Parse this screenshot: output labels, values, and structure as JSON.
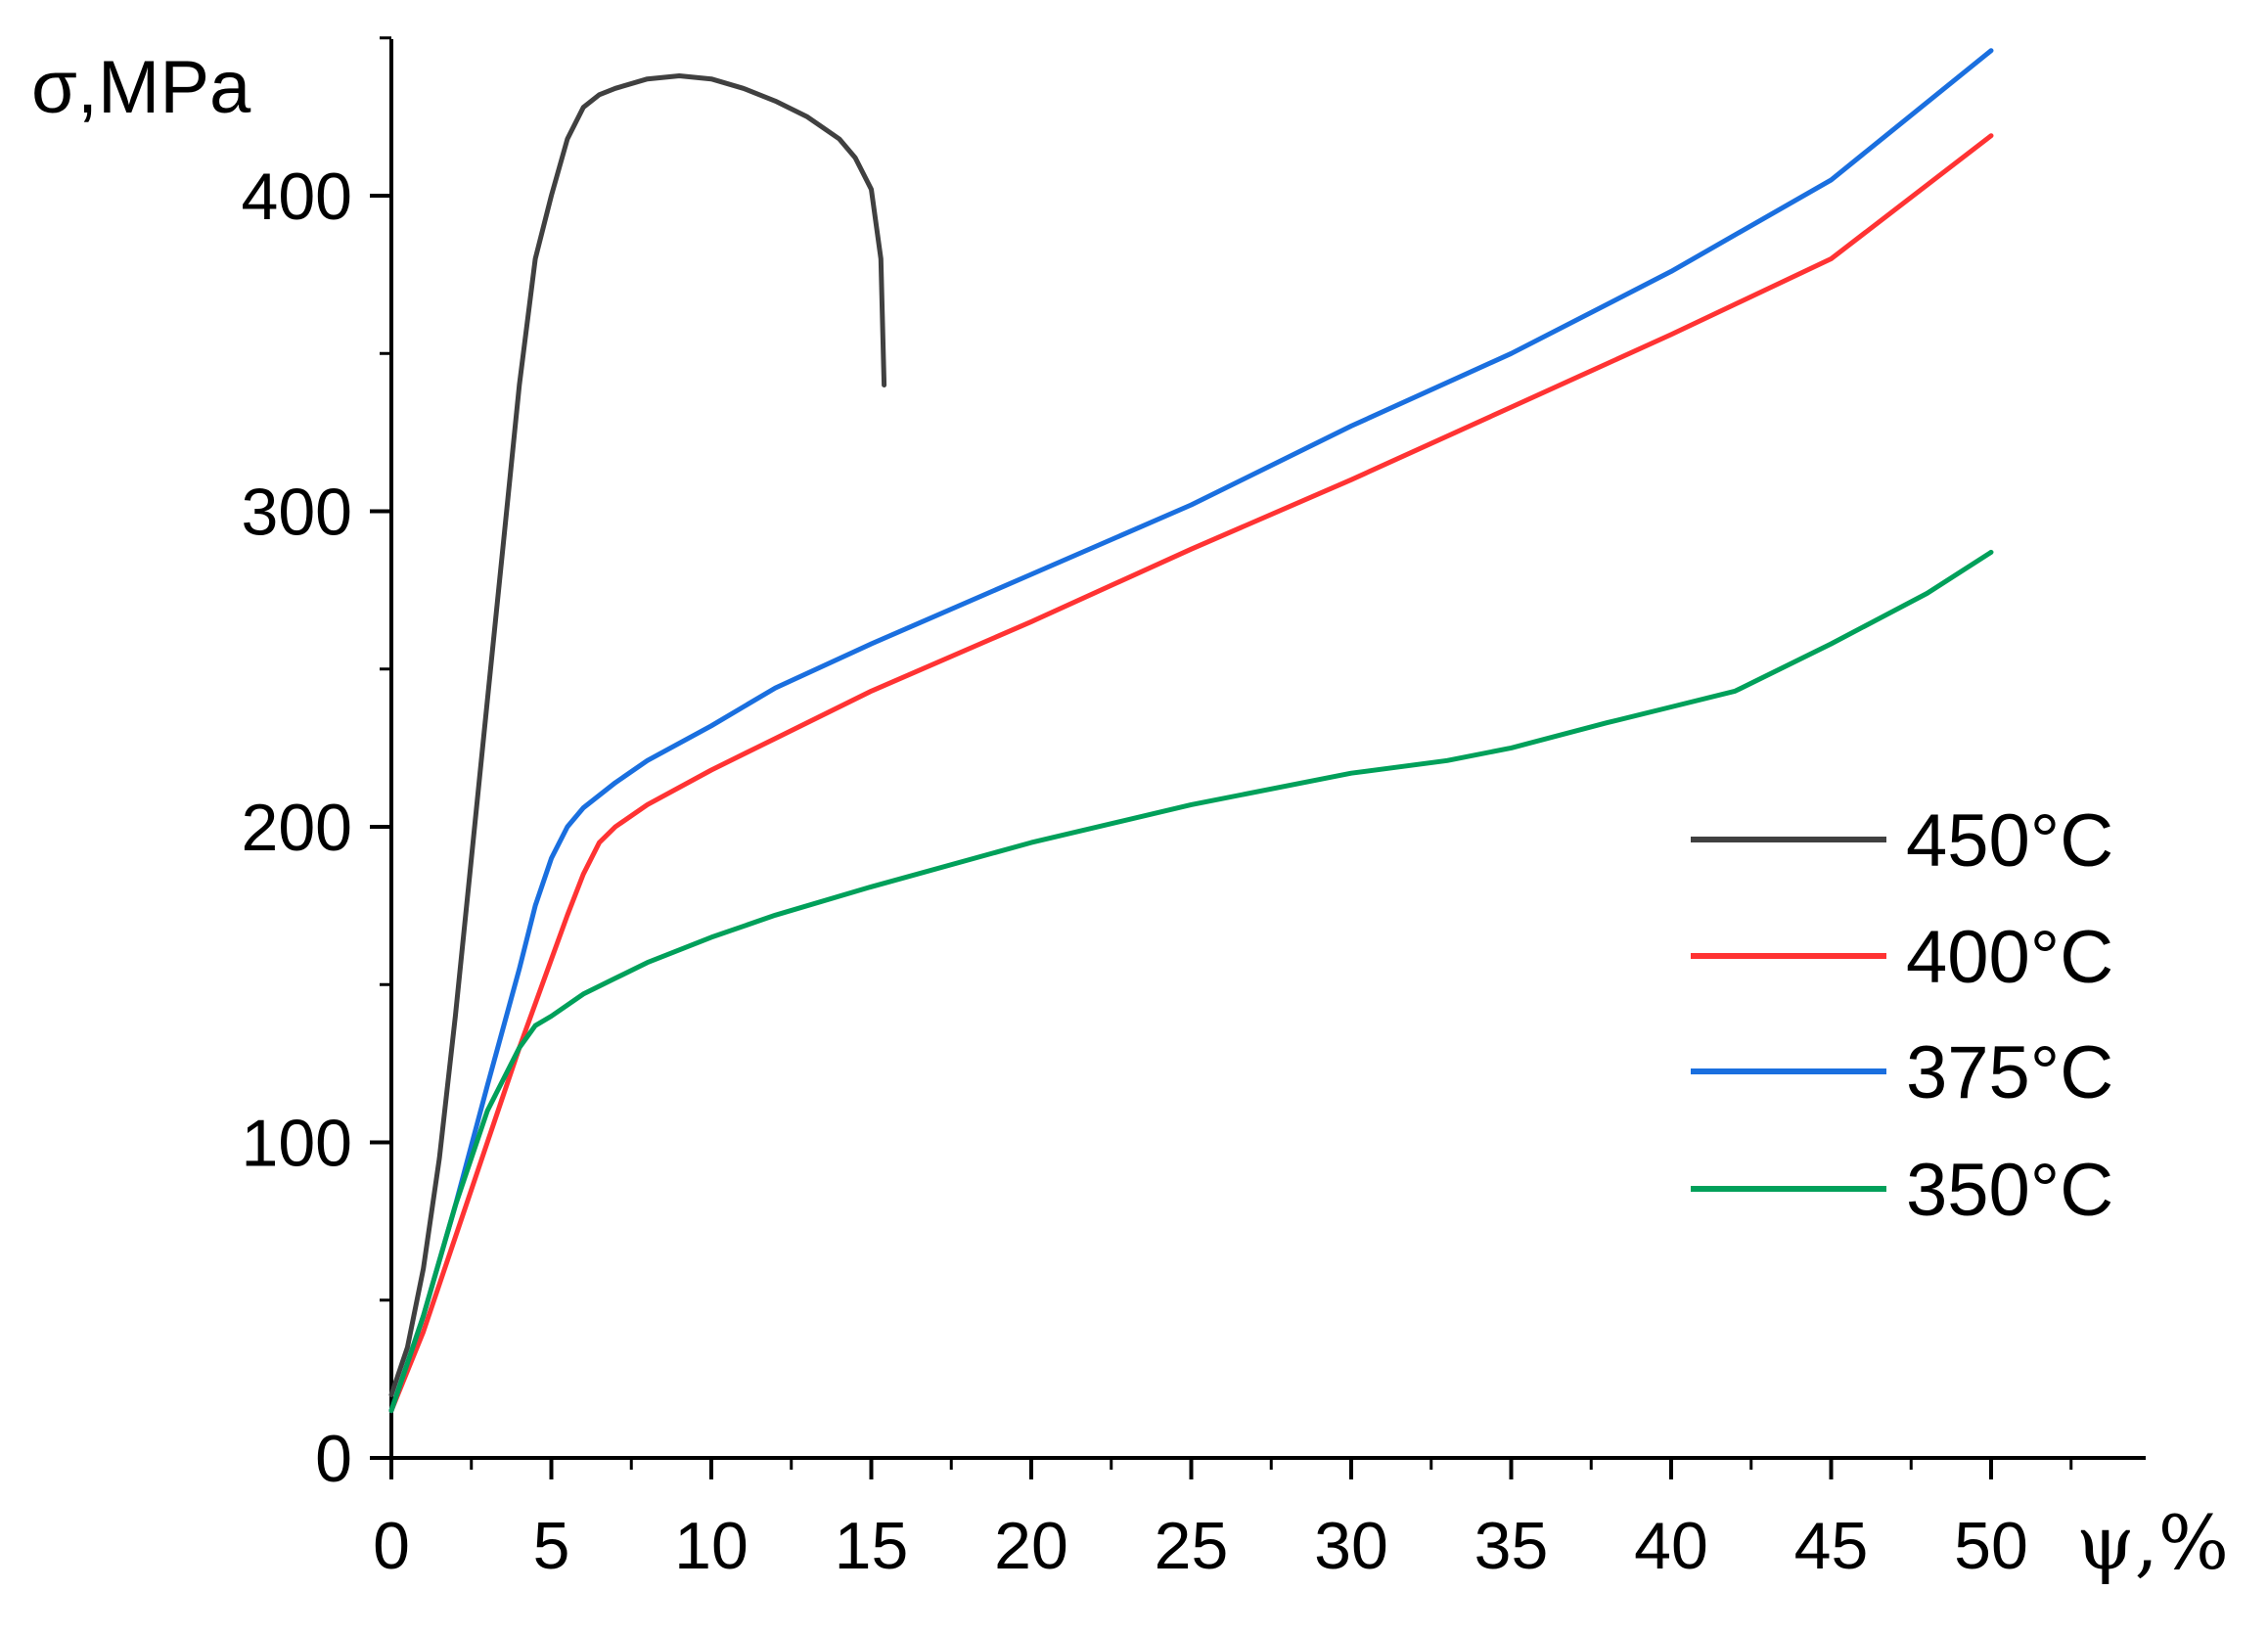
{
  "chart_data": {
    "type": "line",
    "ylabel": "σ,MPa",
    "xlabel": "ψ,%",
    "xlim": [
      0,
      55
    ],
    "ylim": [
      0,
      450
    ],
    "x_ticks": [
      0,
      5,
      10,
      15,
      20,
      25,
      30,
      35,
      40,
      45,
      50
    ],
    "y_ticks": [
      0,
      100,
      200,
      300,
      400
    ],
    "grid": false,
    "legend_position": "right",
    "series": [
      {
        "name": "450°C",
        "color": "#404040",
        "points": [
          [
            0,
            20
          ],
          [
            0.5,
            35
          ],
          [
            1,
            60
          ],
          [
            1.5,
            95
          ],
          [
            2,
            140
          ],
          [
            2.5,
            190
          ],
          [
            3,
            240
          ],
          [
            3.5,
            290
          ],
          [
            4,
            340
          ],
          [
            4.5,
            380
          ],
          [
            5,
            400
          ],
          [
            5.5,
            418
          ],
          [
            6,
            428
          ],
          [
            6.5,
            432
          ],
          [
            7,
            434
          ],
          [
            8,
            437
          ],
          [
            9,
            438
          ],
          [
            10,
            437
          ],
          [
            11,
            434
          ],
          [
            12,
            430
          ],
          [
            13,
            425
          ],
          [
            14,
            418
          ],
          [
            14.5,
            412
          ],
          [
            15,
            402
          ],
          [
            15.3,
            380
          ],
          [
            15.4,
            340
          ]
        ]
      },
      {
        "name": "400°C",
        "color": "#ff3333",
        "points": [
          [
            0,
            15
          ],
          [
            1,
            40
          ],
          [
            2,
            70
          ],
          [
            3,
            100
          ],
          [
            4,
            130
          ],
          [
            5,
            158
          ],
          [
            5.5,
            172
          ],
          [
            6,
            185
          ],
          [
            6.5,
            195
          ],
          [
            7,
            200
          ],
          [
            8,
            207
          ],
          [
            10,
            218
          ],
          [
            12,
            228
          ],
          [
            15,
            243
          ],
          [
            20,
            265
          ],
          [
            25,
            288
          ],
          [
            30,
            310
          ],
          [
            35,
            333
          ],
          [
            40,
            356
          ],
          [
            45,
            380
          ],
          [
            50,
            419
          ]
        ]
      },
      {
        "name": "375°C",
        "color": "#1a6fdf",
        "points": [
          [
            0,
            15
          ],
          [
            1,
            45
          ],
          [
            2,
            80
          ],
          [
            3,
            118
          ],
          [
            4,
            155
          ],
          [
            4.5,
            175
          ],
          [
            5,
            190
          ],
          [
            5.5,
            200
          ],
          [
            6,
            206
          ],
          [
            7,
            214
          ],
          [
            8,
            221
          ],
          [
            10,
            232
          ],
          [
            12,
            244
          ],
          [
            15,
            258
          ],
          [
            20,
            280
          ],
          [
            25,
            302
          ],
          [
            30,
            327
          ],
          [
            35,
            350
          ],
          [
            40,
            376
          ],
          [
            45,
            405
          ],
          [
            50,
            446
          ]
        ]
      },
      {
        "name": "350°C",
        "color": "#00a05a",
        "points": [
          [
            0,
            15
          ],
          [
            1,
            45
          ],
          [
            2,
            80
          ],
          [
            3,
            110
          ],
          [
            4,
            130
          ],
          [
            4.5,
            137
          ],
          [
            5,
            140
          ],
          [
            6,
            147
          ],
          [
            7,
            152
          ],
          [
            8,
            157
          ],
          [
            10,
            165
          ],
          [
            12,
            172
          ],
          [
            15,
            181
          ],
          [
            20,
            195
          ],
          [
            25,
            207
          ],
          [
            30,
            217
          ],
          [
            33,
            221
          ],
          [
            35,
            225
          ],
          [
            38,
            233
          ],
          [
            40,
            238
          ],
          [
            42,
            243
          ],
          [
            45,
            258
          ],
          [
            48,
            274
          ],
          [
            50,
            287
          ]
        ]
      }
    ]
  }
}
